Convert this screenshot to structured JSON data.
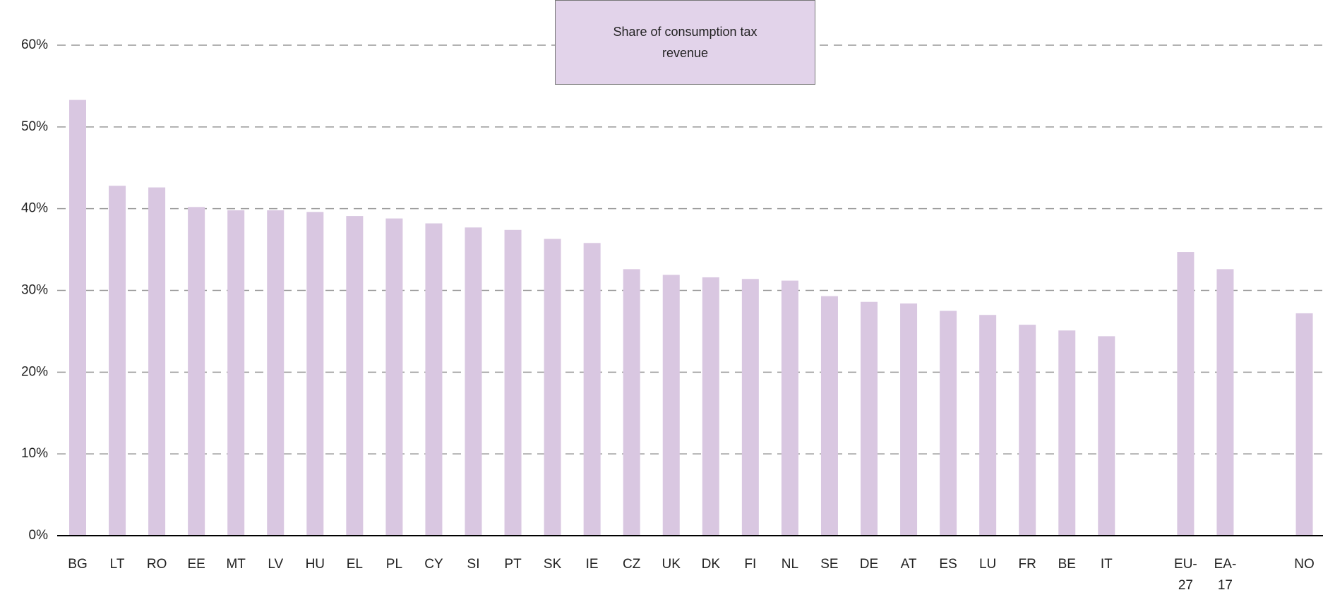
{
  "chart_data": {
    "type": "bar",
    "categories": [
      "BG",
      "LT",
      "RO",
      "EE",
      "MT",
      "LV",
      "HU",
      "EL",
      "PL",
      "CY",
      "SI",
      "PT",
      "SK",
      "IE",
      "CZ",
      "UK",
      "DK",
      "FI",
      "NL",
      "SE",
      "DE",
      "AT",
      "ES",
      "LU",
      "FR",
      "BE",
      "IT",
      null,
      "EU-27",
      "EA-17",
      null,
      "NO"
    ],
    "series": [
      {
        "name": "Share of consumption tax revenue",
        "color": "#d9c7e1",
        "values": [
          53.3,
          42.8,
          42.6,
          40.2,
          39.8,
          39.8,
          39.6,
          39.1,
          38.8,
          38.2,
          37.7,
          37.4,
          36.3,
          35.8,
          32.6,
          31.9,
          31.6,
          31.4,
          31.2,
          29.3,
          28.6,
          28.4,
          27.5,
          27.0,
          25.8,
          25.1,
          24.4,
          null,
          34.7,
          32.6,
          null,
          27.2
        ]
      }
    ],
    "ylim": [
      0,
      60
    ],
    "yticks": [
      {
        "value": 0,
        "label": "0%"
      },
      {
        "value": 10,
        "label": "10%"
      },
      {
        "value": 20,
        "label": "20%"
      },
      {
        "value": 30,
        "label": "30%"
      },
      {
        "value": 40,
        "label": "40%"
      },
      {
        "value": 50,
        "label": "50%"
      },
      {
        "value": 60,
        "label": "60%"
      }
    ],
    "grid": true,
    "legend": "top"
  }
}
